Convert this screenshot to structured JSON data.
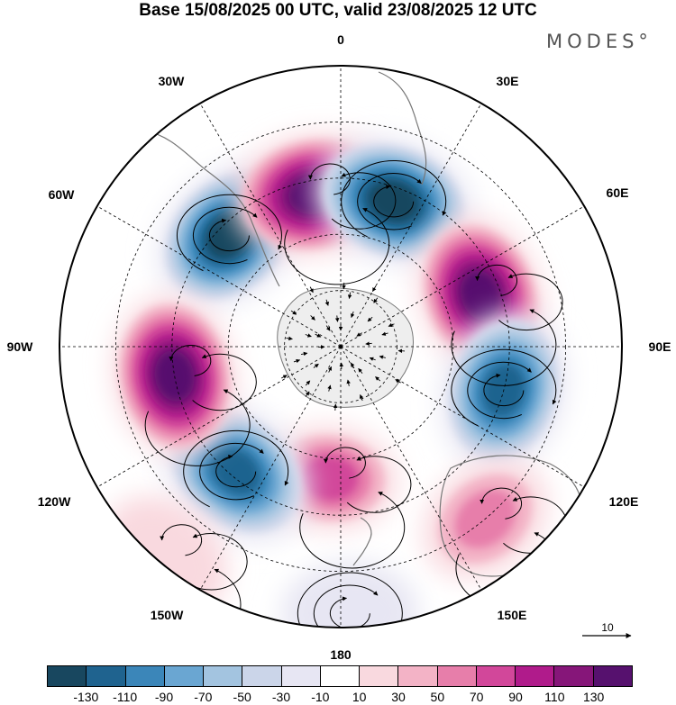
{
  "title": "Base 15/08/2025 00 UTC, valid 23/08/2025 12 UTC",
  "brand": "MODES°",
  "longitude_labels": [
    "0",
    "30E",
    "60E",
    "90E",
    "120E",
    "150E",
    "180",
    "150W",
    "120W",
    "90W",
    "60W",
    "30W"
  ],
  "reference_vector": {
    "label": "10"
  },
  "colorbar": {
    "ticks": [
      "-130",
      "-110",
      "-90",
      "-70",
      "-50",
      "-30",
      "-10",
      "10",
      "30",
      "50",
      "70",
      "90",
      "110",
      "130"
    ],
    "colors": [
      "#18475f",
      "#1f638f",
      "#3b86b9",
      "#6aa6d2",
      "#a3c4e0",
      "#cbd5e9",
      "#e7e6f3",
      "#ffffff",
      "#f9d9df",
      "#f3b3c6",
      "#e77eaa",
      "#d2479a",
      "#b01b8b",
      "#861679",
      "#56116e"
    ]
  },
  "anomaly_centers": [
    {
      "name": "atlantic-negative",
      "lon": -45,
      "colat": 0.56,
      "value": -140
    },
    {
      "name": "south-atlantic-positive",
      "lon": -10,
      "colat": 0.55,
      "value": 140
    },
    {
      "name": "southern-africa-negative",
      "lon": 20,
      "colat": 0.55,
      "value": -140
    },
    {
      "name": "indian-positive",
      "lon": 70,
      "colat": 0.53,
      "value": 140
    },
    {
      "name": "south-indian-negative",
      "lon": 105,
      "colat": 0.6,
      "value": -120
    },
    {
      "name": "australia-positive",
      "lon": 140,
      "colat": 0.8,
      "value": 60
    },
    {
      "name": "pacific-positive",
      "lon": -175,
      "colat": 0.47,
      "value": 80
    },
    {
      "name": "pacific-south-negative",
      "lon": 178,
      "colat": 0.95,
      "value": -35
    },
    {
      "name": "south-pacific-negative",
      "lon": -140,
      "colat": 0.58,
      "value": -135
    },
    {
      "name": "southeast-pacific-positive",
      "lon": -100,
      "colat": 0.6,
      "value": 140
    },
    {
      "name": "subtropical-pacific-positive",
      "lon": -140,
      "colat": 0.97,
      "value": 30
    }
  ]
}
